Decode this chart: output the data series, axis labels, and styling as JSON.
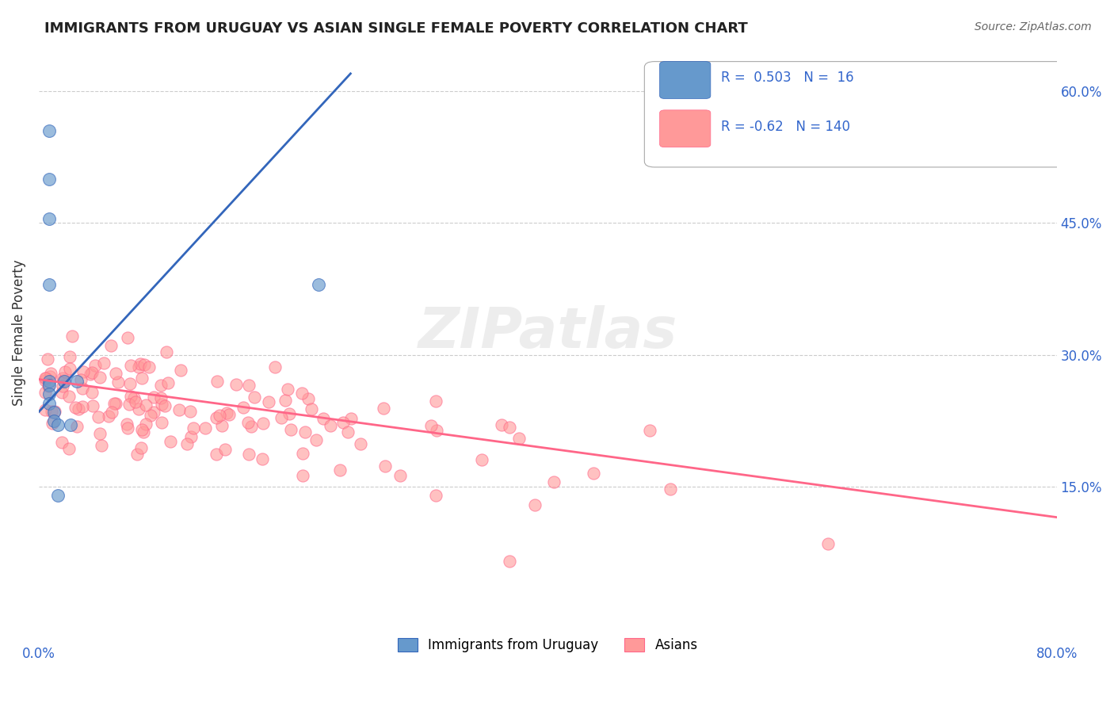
{
  "title": "IMMIGRANTS FROM URUGUAY VS ASIAN SINGLE FEMALE POVERTY CORRELATION CHART",
  "source": "Source: ZipAtlas.com",
  "ylabel": "Single Female Poverty",
  "legend_label1": "Immigrants from Uruguay",
  "legend_label2": "Asians",
  "R1": 0.503,
  "N1": 16,
  "R2": -0.62,
  "N2": 140,
  "color_blue": "#6699CC",
  "color_pink": "#FF9999",
  "color_blue_line": "#3366BB",
  "color_pink_line": "#FF6688",
  "color_text_blue": "#3366CC",
  "xlim": [
    0.0,
    0.8
  ],
  "ylim": [
    0.0,
    0.65
  ],
  "yticks_right": [
    0.15,
    0.3,
    0.45,
    0.6
  ],
  "ytick_labels_right": [
    "15.0%",
    "30.0%",
    "45.0%",
    "60.0%"
  ],
  "blue_line_x": [
    0.0,
    0.245
  ],
  "blue_line_y": [
    0.235,
    0.62
  ],
  "pink_line_x": [
    0.0,
    0.8
  ],
  "pink_line_y": [
    0.272,
    0.115
  ]
}
